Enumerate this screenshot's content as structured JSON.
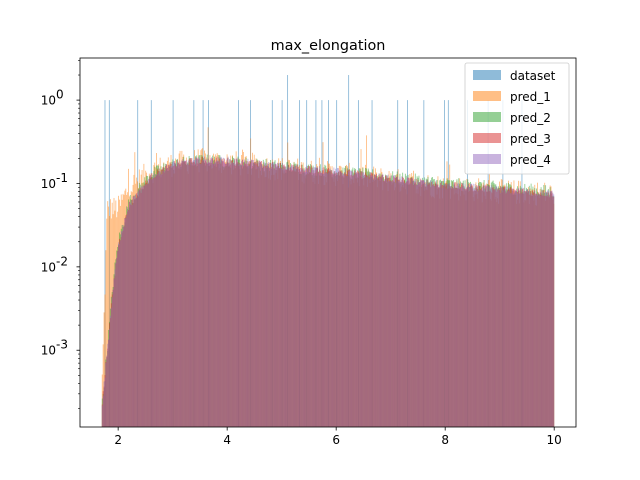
{
  "chart_data": {
    "type": "histogram",
    "title": "max_elongation",
    "xlabel": "",
    "ylabel": "",
    "xlim": [
      1.3,
      10.4
    ],
    "ylim": [
      0.00012,
      3.2
    ],
    "yscale": "log",
    "xticks": [
      2,
      4,
      6,
      8,
      10
    ],
    "xtick_labels": [
      "2",
      "4",
      "6",
      "8",
      "10"
    ],
    "yticks": [
      0.001,
      0.01,
      0.1,
      1
    ],
    "ytick_labels": [
      "10^-3",
      "10^-2",
      "10^-1",
      "10^0"
    ],
    "legend_position": "top-right",
    "grid": false,
    "bin_range": [
      1.7,
      10.0
    ],
    "series": [
      {
        "name": "dataset",
        "color": "#1f77b4",
        "alpha": 0.5,
        "description": "sparse spikes",
        "spikes": [
          {
            "x": 1.75,
            "y": 1.0
          },
          {
            "x": 1.83,
            "y": 1.0
          },
          {
            "x": 2.35,
            "y": 1.0
          },
          {
            "x": 2.6,
            "y": 1.0
          },
          {
            "x": 3.0,
            "y": 1.0
          },
          {
            "x": 3.38,
            "y": 1.0
          },
          {
            "x": 3.55,
            "y": 1.0
          },
          {
            "x": 3.65,
            "y": 1.0
          },
          {
            "x": 4.2,
            "y": 1.0
          },
          {
            "x": 4.42,
            "y": 1.0
          },
          {
            "x": 4.82,
            "y": 1.0
          },
          {
            "x": 5.0,
            "y": 1.0
          },
          {
            "x": 5.1,
            "y": 2.0
          },
          {
            "x": 5.32,
            "y": 1.0
          },
          {
            "x": 5.45,
            "y": 1.0
          },
          {
            "x": 5.62,
            "y": 1.0
          },
          {
            "x": 5.73,
            "y": 1.0
          },
          {
            "x": 5.85,
            "y": 1.0
          },
          {
            "x": 6.0,
            "y": 1.0
          },
          {
            "x": 6.22,
            "y": 2.0
          },
          {
            "x": 6.4,
            "y": 1.0
          },
          {
            "x": 6.65,
            "y": 1.0
          },
          {
            "x": 7.12,
            "y": 1.0
          },
          {
            "x": 7.3,
            "y": 1.0
          },
          {
            "x": 7.6,
            "y": 1.0
          },
          {
            "x": 7.98,
            "y": 1.0
          },
          {
            "x": 8.05,
            "y": 1.0
          },
          {
            "x": 8.4,
            "y": 1.0
          },
          {
            "x": 8.78,
            "y": 1.0
          },
          {
            "x": 9.05,
            "y": 1.0
          },
          {
            "x": 9.4,
            "y": 1.0
          }
        ]
      },
      {
        "name": "pred_1",
        "color": "#ff7f0e",
        "alpha": 0.5,
        "envelope": [
          [
            1.7,
            0.0003
          ],
          [
            1.8,
            0.05
          ],
          [
            1.9,
            0.05
          ],
          [
            2.0,
            0.05
          ],
          [
            2.2,
            0.09
          ],
          [
            2.6,
            0.14
          ],
          [
            3.0,
            0.17
          ],
          [
            3.5,
            0.19
          ],
          [
            4.0,
            0.18
          ],
          [
            5.0,
            0.15
          ],
          [
            6.0,
            0.13
          ],
          [
            7.0,
            0.11
          ],
          [
            8.0,
            0.09
          ],
          [
            9.0,
            0.08
          ],
          [
            10.0,
            0.075
          ]
        ],
        "noise": 1.0
      },
      {
        "name": "pred_2",
        "color": "#2ca02c",
        "alpha": 0.5,
        "envelope": [
          [
            1.7,
            0.0002
          ],
          [
            1.8,
            0.001
          ],
          [
            1.9,
            0.006
          ],
          [
            2.0,
            0.02
          ],
          [
            2.2,
            0.06
          ],
          [
            2.6,
            0.13
          ],
          [
            3.0,
            0.17
          ],
          [
            3.5,
            0.19
          ],
          [
            4.0,
            0.185
          ],
          [
            5.0,
            0.16
          ],
          [
            6.0,
            0.14
          ],
          [
            7.0,
            0.12
          ],
          [
            8.0,
            0.1
          ],
          [
            9.0,
            0.09
          ],
          [
            10.0,
            0.08
          ]
        ],
        "noise": 0.5
      },
      {
        "name": "pred_3",
        "color": "#d62728",
        "alpha": 0.5,
        "envelope": [
          [
            1.7,
            0.0002
          ],
          [
            1.8,
            0.001
          ],
          [
            1.9,
            0.005
          ],
          [
            2.0,
            0.018
          ],
          [
            2.2,
            0.055
          ],
          [
            2.6,
            0.12
          ],
          [
            3.0,
            0.17
          ],
          [
            3.5,
            0.19
          ],
          [
            4.0,
            0.185
          ],
          [
            5.0,
            0.16
          ],
          [
            6.0,
            0.14
          ],
          [
            7.0,
            0.115
          ],
          [
            8.0,
            0.095
          ],
          [
            9.0,
            0.085
          ],
          [
            10.0,
            0.075
          ]
        ],
        "noise": 0.3
      },
      {
        "name": "pred_4",
        "color": "#9467bd",
        "alpha": 0.5,
        "envelope": [
          [
            1.7,
            0.0002
          ],
          [
            1.8,
            0.001
          ],
          [
            1.9,
            0.005
          ],
          [
            2.0,
            0.018
          ],
          [
            2.2,
            0.055
          ],
          [
            2.6,
            0.12
          ],
          [
            3.0,
            0.17
          ],
          [
            3.5,
            0.19
          ],
          [
            4.0,
            0.19
          ],
          [
            5.0,
            0.16
          ],
          [
            6.0,
            0.14
          ],
          [
            7.0,
            0.115
          ],
          [
            8.0,
            0.095
          ],
          [
            9.0,
            0.085
          ],
          [
            10.0,
            0.075
          ]
        ],
        "noise": 0.3
      }
    ]
  }
}
